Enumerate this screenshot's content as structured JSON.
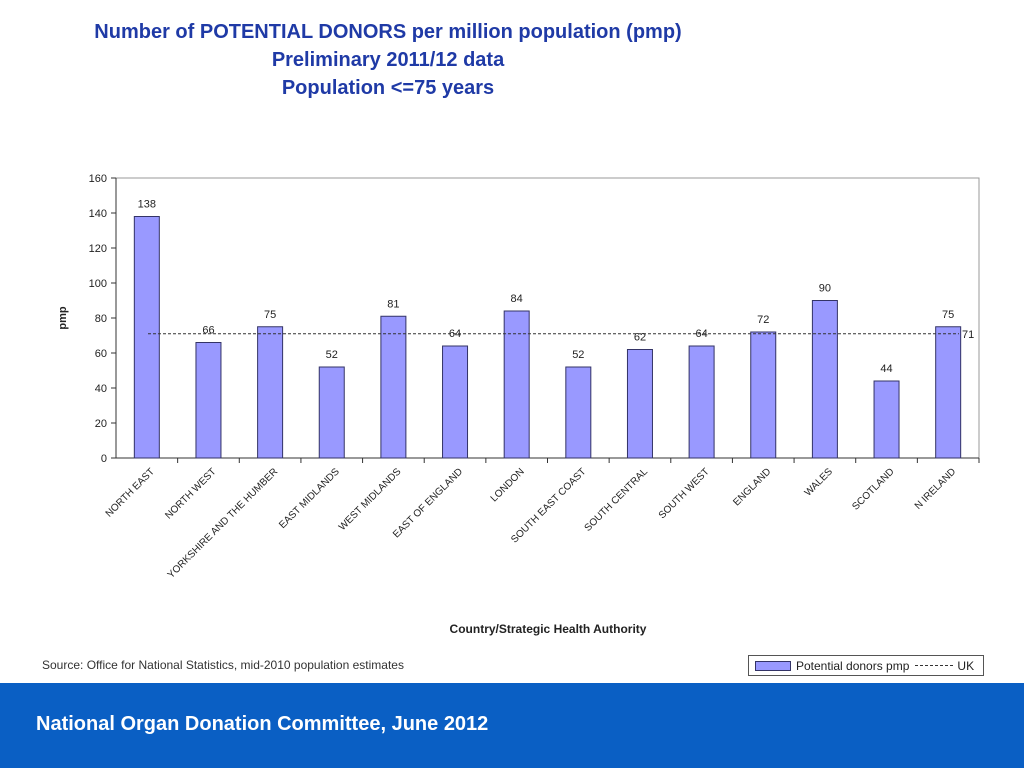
{
  "title": {
    "line1": "Number of POTENTIAL DONORS per million population (pmp)",
    "line2": "Preliminary 2011/12 data",
    "line3": "Population <=75 years"
  },
  "source": "Source: Office for National Statistics, mid-2010 population estimates",
  "legend": {
    "bar_label": "Potential donors pmp",
    "line_label": "UK"
  },
  "footer": "National Organ Donation Committee, June 2012",
  "colors": {
    "bar": "#9999ff",
    "bar_stroke": "#333366",
    "title": "#1f3aa6",
    "footer": "#0a5fc4"
  },
  "chart_data": {
    "type": "bar",
    "ylabel": "pmp",
    "xlabel": "Country/Strategic Health Authority",
    "ylim": [
      0,
      160
    ],
    "yticks": [
      0,
      20,
      40,
      60,
      80,
      100,
      120,
      140,
      160
    ],
    "grid": false,
    "legend_position": "bottom-right",
    "categories": [
      "NORTH EAST",
      "NORTH WEST",
      "YORKSHIRE AND THE HUMBER",
      "EAST MIDLANDS",
      "WEST MIDLANDS",
      "EAST OF ENGLAND",
      "LONDON",
      "SOUTH EAST COAST",
      "SOUTH CENTRAL",
      "SOUTH WEST",
      "ENGLAND",
      "WALES",
      "SCOTLAND",
      "N IRELAND"
    ],
    "series": [
      {
        "name": "Potential donors pmp",
        "values": [
          138,
          66,
          75,
          52,
          81,
          64,
          84,
          52,
          62,
          64,
          72,
          90,
          44,
          75
        ]
      }
    ],
    "reference_line": {
      "name": "UK",
      "value": 71
    }
  }
}
